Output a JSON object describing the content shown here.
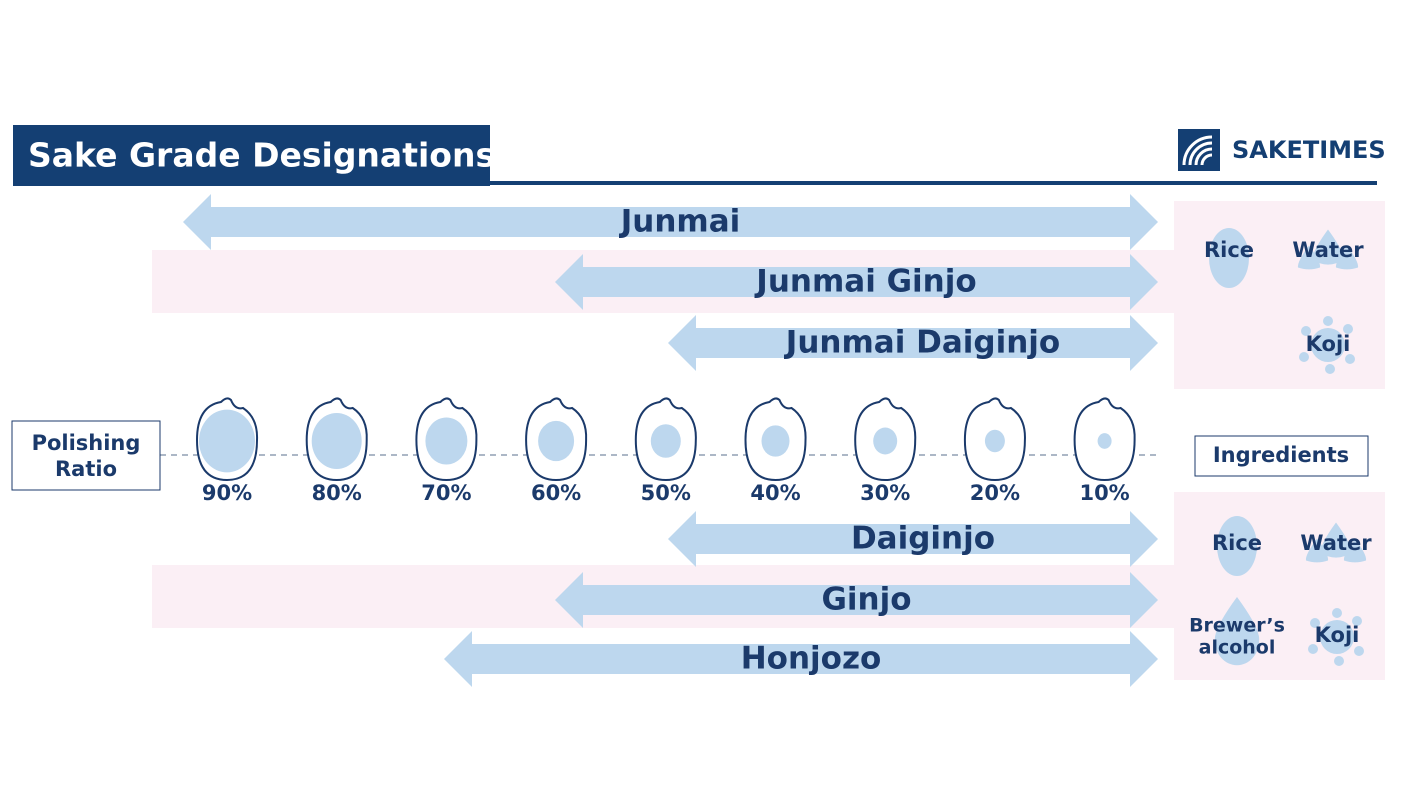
{
  "header": {
    "title": "Sake Grade Designations",
    "brand": "SAKETIMES"
  },
  "axis": {
    "label": [
      "Polishing",
      "Ratio"
    ],
    "ratios": [
      "90%",
      "80%",
      "70%",
      "60%",
      "50%",
      "40%",
      "30%",
      "20%",
      "10%"
    ]
  },
  "ingredients_label": "Ingredients",
  "top": {
    "grades": [
      "Junmai",
      "Junmai Ginjo",
      "Junmai Daiginjo"
    ],
    "ingredients": [
      "Rice",
      "Water",
      "Koji"
    ]
  },
  "bottom": {
    "grades": [
      "Daiginjo",
      "Ginjo",
      "Honjozo"
    ],
    "ingredients": [
      "Rice",
      "Water",
      [
        "Brewer’s",
        "alcohol"
      ],
      "Koji"
    ]
  }
}
